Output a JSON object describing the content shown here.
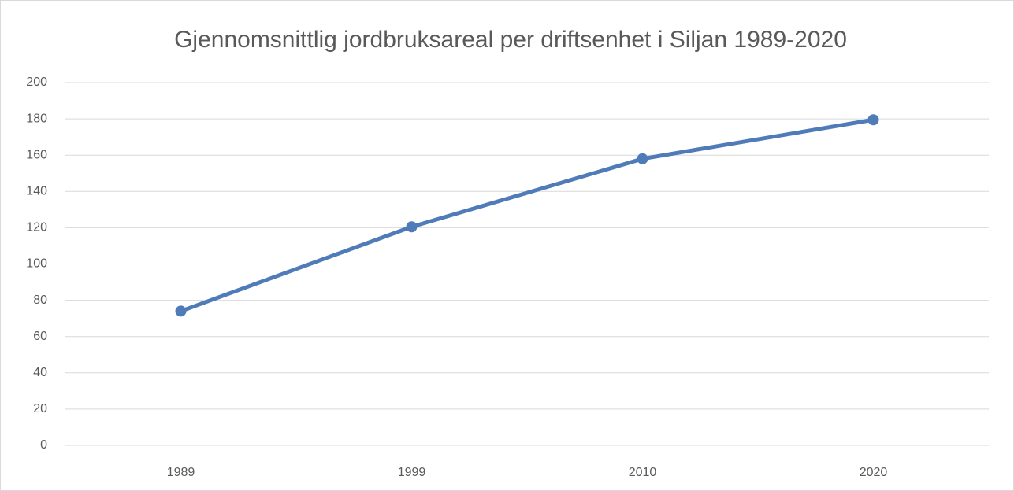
{
  "chart_data": {
    "type": "line",
    "title": "Gjennomsnittlig jordbruksareal per driftsenhet i Siljan 1989-2020",
    "categories": [
      "1989",
      "1999",
      "2010",
      "2020"
    ],
    "values": [
      74,
      120.5,
      158,
      179.5
    ],
    "color": "#4f7cb8",
    "ylim": [
      0,
      200
    ],
    "yticks": [
      0,
      20,
      40,
      60,
      80,
      100,
      120,
      140,
      160,
      180,
      200
    ],
    "grid": true
  }
}
